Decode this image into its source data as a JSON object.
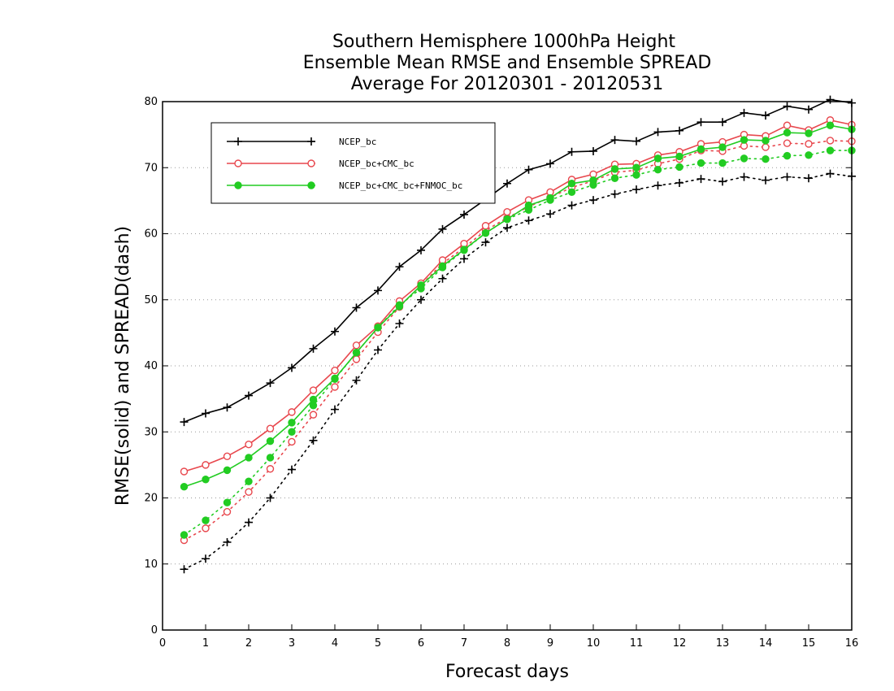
{
  "chart_data": {
    "type": "line",
    "title_lines": [
      "Southern Hemisphere 1000hPa Height",
      "Ensemble Mean RMSE and Ensemble SPREAD",
      "Average For 20120301 - 20120531"
    ],
    "xlabel": "Forecast days",
    "ylabel": "RMSE(solid) and SPREAD(dash)",
    "xlim": [
      0,
      16
    ],
    "ylim": [
      0,
      80
    ],
    "xticks": [
      "0",
      "1",
      "2",
      "3",
      "4",
      "5",
      "6",
      "7",
      "8",
      "9",
      "10",
      "11",
      "12",
      "13",
      "14",
      "15",
      "16"
    ],
    "yticks": [
      "0",
      "10",
      "20",
      "30",
      "40",
      "50",
      "60",
      "70",
      "80"
    ],
    "grid": "horizontal dotted",
    "legend_position": "top-left",
    "x": [
      0.5,
      1,
      1.5,
      2,
      2.5,
      3,
      3.5,
      4,
      4.5,
      5,
      5.5,
      6,
      6.5,
      7,
      7.5,
      8,
      8.5,
      9,
      9.5,
      10,
      10.5,
      11,
      11.5,
      12,
      12.5,
      13,
      13.5,
      14,
      14.5,
      15,
      15.5,
      16
    ],
    "series": [
      {
        "name": "NCEP_bc",
        "color": "#000000",
        "marker": "plus",
        "rmse": [
          31.5,
          32.8,
          33.7,
          35.5,
          37.4,
          39.7,
          42.6,
          45.2,
          48.8,
          51.4,
          55.0,
          57.5,
          60.7,
          62.9,
          65.2,
          67.6,
          69.7,
          70.6,
          72.4,
          72.5,
          74.2,
          74.0,
          75.4,
          75.6,
          76.9,
          76.9,
          78.3,
          77.9,
          79.3,
          78.8,
          80.3,
          79.8
        ],
        "spread": [
          9.2,
          10.8,
          13.3,
          16.3,
          20.0,
          24.3,
          28.7,
          33.4,
          37.8,
          42.4,
          46.4,
          50.0,
          53.2,
          56.2,
          58.7,
          60.9,
          62.0,
          63.0,
          64.3,
          65.1,
          66.0,
          66.7,
          67.3,
          67.7,
          68.3,
          67.9,
          68.6,
          68.1,
          68.6,
          68.4,
          69.1,
          68.7
        ]
      },
      {
        "name": "NCEP_bc+CMC_bc",
        "color": "#e8474d",
        "marker": "open-circle",
        "rmse": [
          24.0,
          25.0,
          26.3,
          28.1,
          30.5,
          33.0,
          36.3,
          39.3,
          43.1,
          46.0,
          49.8,
          52.5,
          56.0,
          58.5,
          61.2,
          63.3,
          65.1,
          66.3,
          68.2,
          69.0,
          70.5,
          70.6,
          71.9,
          72.4,
          73.6,
          73.9,
          75.0,
          74.8,
          76.4,
          75.7,
          77.2,
          76.5
        ],
        "spread": [
          13.6,
          15.4,
          17.9,
          20.9,
          24.4,
          28.5,
          32.6,
          36.8,
          41.0,
          45.1,
          48.9,
          52.2,
          55.5,
          57.9,
          60.5,
          62.4,
          64.1,
          65.5,
          67.0,
          68.0,
          69.3,
          69.6,
          70.6,
          71.3,
          72.6,
          72.5,
          73.3,
          73.1,
          73.7,
          73.6,
          74.1,
          74.0
        ]
      },
      {
        "name": "NCEP_bc+CMC_bc+FNMOC_bc",
        "color": "#22cc22",
        "marker": "filled-circle",
        "rmse": [
          21.7,
          22.8,
          24.2,
          26.1,
          28.6,
          31.4,
          34.9,
          38.1,
          42.0,
          45.8,
          49.0,
          52.2,
          55.1,
          57.6,
          60.1,
          62.2,
          64.3,
          65.4,
          67.6,
          68.1,
          69.8,
          70.0,
          71.4,
          71.7,
          72.8,
          73.1,
          74.2,
          74.1,
          75.3,
          75.2,
          76.4,
          75.8
        ],
        "spread": [
          14.4,
          16.6,
          19.3,
          22.5,
          26.1,
          30.0,
          34.0,
          38.0,
          42.0,
          45.8,
          49.2,
          51.7,
          54.9,
          57.5,
          60.1,
          62.2,
          63.6,
          65.1,
          66.3,
          67.4,
          68.4,
          68.9,
          69.7,
          70.1,
          70.7,
          70.7,
          71.4,
          71.3,
          71.8,
          71.9,
          72.6,
          72.6
        ]
      }
    ]
  }
}
